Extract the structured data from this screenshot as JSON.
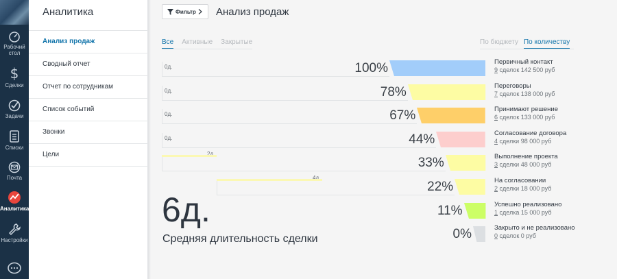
{
  "nav": {
    "items": [
      {
        "label": "Рабочий стол",
        "line1": "Рабочий",
        "line2": "стол",
        "icon": "dashboard-icon"
      },
      {
        "label": "Сделки",
        "icon": "dollar-icon"
      },
      {
        "label": "Задачи",
        "icon": "check-icon"
      },
      {
        "label": "Списки",
        "icon": "list-icon"
      },
      {
        "label": "Почта",
        "icon": "mail-icon"
      },
      {
        "label": "Аналитика",
        "icon": "analytics-icon",
        "active": true
      },
      {
        "label": "Настройки",
        "icon": "wrench-icon"
      }
    ]
  },
  "menu": {
    "title": "Аналитика",
    "items": [
      {
        "label": "Анализ продаж",
        "active": true
      },
      {
        "label": "Сводный отчет"
      },
      {
        "label": "Отчет по сотрудникам"
      },
      {
        "label": "Список событий"
      },
      {
        "label": "Звонки"
      },
      {
        "label": "Цели"
      }
    ]
  },
  "header": {
    "filter_label": "Фильтр",
    "title": "Анализ продаж"
  },
  "tabs_left": [
    "Все",
    "Активные",
    "Закрытые"
  ],
  "tabs_right": [
    "По бюджету",
    "По количеству"
  ],
  "funnel": [
    {
      "pct": "100%",
      "fraction": 1.0,
      "color": "#a2cdfa",
      "name": "Первичный контакт",
      "count": "9",
      "info": "сделок 142 500 руб",
      "duration": "0д."
    },
    {
      "pct": "78%",
      "fraction": 0.78,
      "color": "#fdfca3",
      "name": "Переговоры",
      "count": "7",
      "info": "сделок 138 000 руб",
      "duration": "0д."
    },
    {
      "pct": "67%",
      "fraction": 0.67,
      "color": "#fecf69",
      "name": "Принимают решение",
      "count": "6",
      "info": "сделок 133 000 руб",
      "duration": "0д."
    },
    {
      "pct": "44%",
      "fraction": 0.44,
      "color": "#fdcecd",
      "name": "Согласование договора",
      "count": "4",
      "info": "сделки 98 000 руб",
      "duration": "0д."
    },
    {
      "pct": "33%",
      "fraction": 0.33,
      "color": "#fdfca3",
      "name": "Выполнение проекта",
      "count": "3",
      "info": "сделки 48 000 руб",
      "duration": "2д."
    },
    {
      "pct": "22%",
      "fraction": 0.22,
      "color": "#fdfca3",
      "name": "На согласовании",
      "count": "2",
      "info": "сделки 18 000 руб",
      "duration": "4д."
    },
    {
      "pct": "11%",
      "fraction": 0.11,
      "color": "#ccfe66",
      "name": "Успешно реализовано",
      "count": "1",
      "info": "сделка 15 000 руб"
    },
    {
      "pct": "0%",
      "fraction": 0.0,
      "color": "#dcdfe2",
      "name": "Закрыто и не реализовано",
      "count": "0",
      "info": "сделок 0 руб"
    }
  ],
  "summary": {
    "value": "6д.",
    "label": "Средняя длительность сделки"
  }
}
